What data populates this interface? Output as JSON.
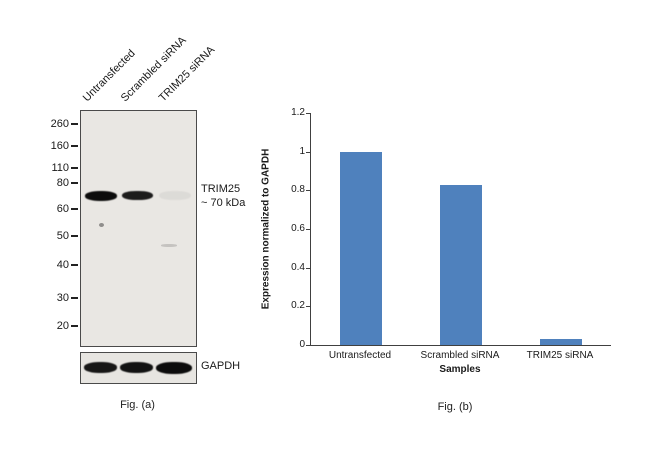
{
  "figure": {
    "panel_a": {
      "caption": "Fig. (a)",
      "lane_labels": [
        "Untransfected",
        "Scrambled siRNA",
        "TRIM25 siRNA"
      ],
      "mw_markers": [
        "260",
        "160",
        "110",
        "80",
        "60",
        "50",
        "40",
        "30",
        "20"
      ],
      "band_annotation_line1": "TRIM25",
      "band_annotation_line2": "~ 70 kDa",
      "loading_control_label": "GAPDH",
      "trim25_band_intensities": [
        1,
        0.92,
        0.05
      ],
      "gapdh_band_intensities": [
        0.95,
        0.97,
        1
      ]
    },
    "panel_b": {
      "caption": "Fig. (b)"
    }
  },
  "chart_data": {
    "type": "bar",
    "categories": [
      "Untransfected",
      "Scrambled siRNA",
      "TRIM25 siRNA"
    ],
    "values": [
      1,
      0.83,
      0.03
    ],
    "title": "",
    "xlabel": "Samples",
    "ylabel": "Expression normalized to GAPDH",
    "ylim": [
      0,
      1.2
    ],
    "yticks": [
      0,
      0.2,
      0.4,
      0.6,
      0.8,
      1,
      1.2
    ],
    "bar_color": "#4F81BD",
    "grid": false,
    "legend": "none"
  }
}
